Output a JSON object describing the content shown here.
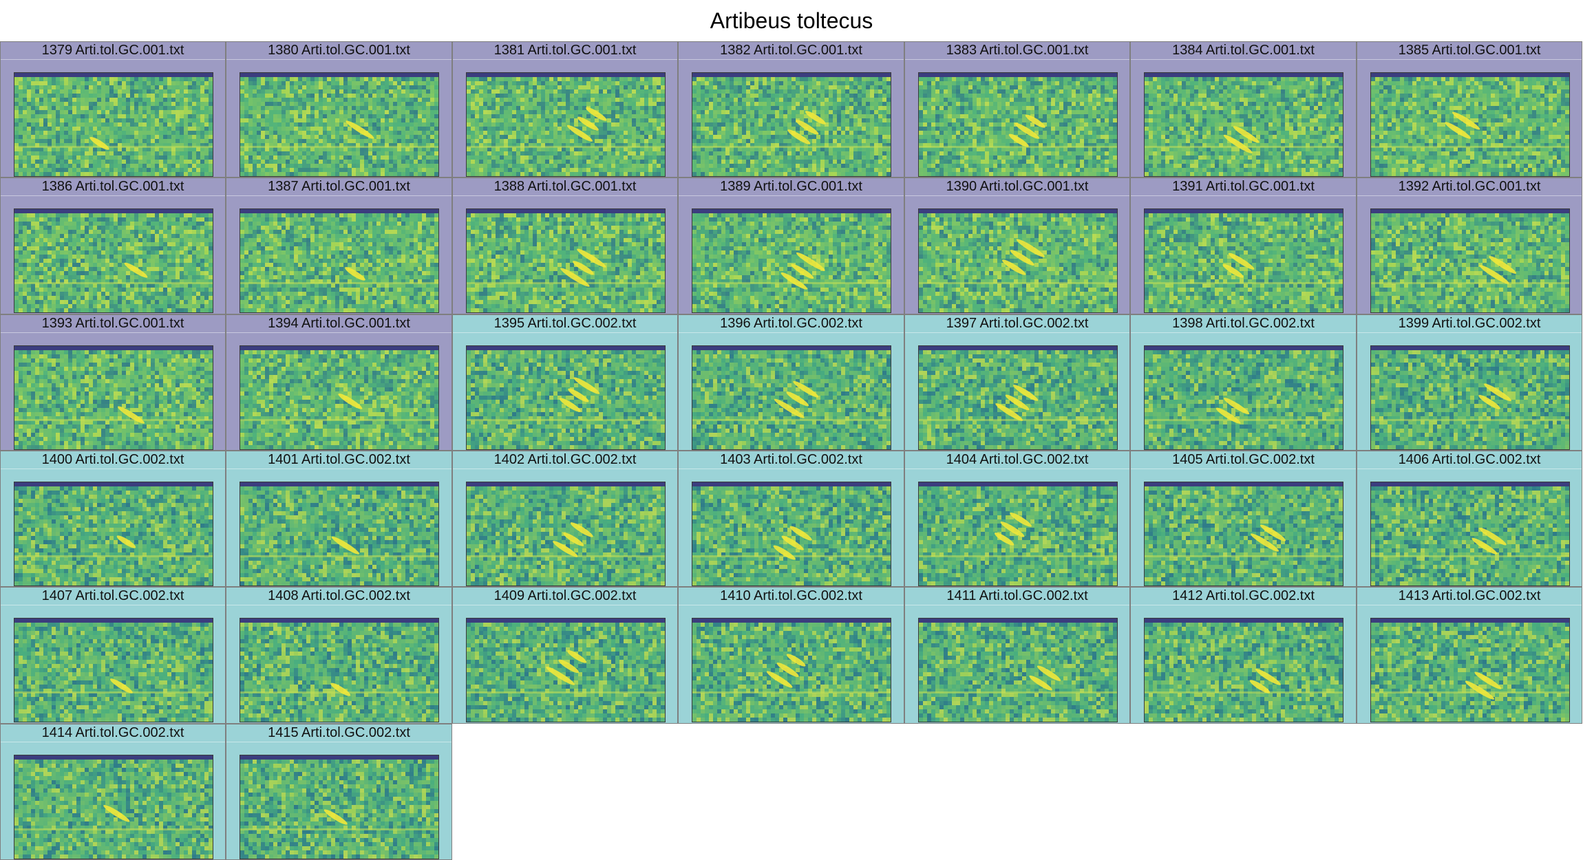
{
  "figure": {
    "title": "Artibeus toltecus"
  },
  "colors": {
    "group_001": "#9d9bc3",
    "group_002": "#9bd3d7",
    "spectro_base": "#4fb27c",
    "spectro_bright": "#b9dd4a",
    "spectro_dark": "#2b6e8a",
    "spectro_top": "#3b3d7e",
    "call": "#f1e83a"
  },
  "panels": [
    {
      "label": "1379 Arti.tol.GC.001.txt",
      "group": "001"
    },
    {
      "label": "1380 Arti.tol.GC.001.txt",
      "group": "001"
    },
    {
      "label": "1381 Arti.tol.GC.001.txt",
      "group": "001"
    },
    {
      "label": "1382 Arti.tol.GC.001.txt",
      "group": "001"
    },
    {
      "label": "1383 Arti.tol.GC.001.txt",
      "group": "001"
    },
    {
      "label": "1384 Arti.tol.GC.001.txt",
      "group": "001"
    },
    {
      "label": "1385 Arti.tol.GC.001.txt",
      "group": "001"
    },
    {
      "label": "1386 Arti.tol.GC.001.txt",
      "group": "001"
    },
    {
      "label": "1387 Arti.tol.GC.001.txt",
      "group": "001"
    },
    {
      "label": "1388 Arti.tol.GC.001.txt",
      "group": "001"
    },
    {
      "label": "1389 Arti.tol.GC.001.txt",
      "group": "001"
    },
    {
      "label": "1390 Arti.tol.GC.001.txt",
      "group": "001"
    },
    {
      "label": "1391 Arti.tol.GC.001.txt",
      "group": "001"
    },
    {
      "label": "1392 Arti.tol.GC.001.txt",
      "group": "001"
    },
    {
      "label": "1393 Arti.tol.GC.001.txt",
      "group": "001"
    },
    {
      "label": "1394 Arti.tol.GC.001.txt",
      "group": "001"
    },
    {
      "label": "1395 Arti.tol.GC.002.txt",
      "group": "002"
    },
    {
      "label": "1396 Arti.tol.GC.002.txt",
      "group": "002"
    },
    {
      "label": "1397 Arti.tol.GC.002.txt",
      "group": "002"
    },
    {
      "label": "1398 Arti.tol.GC.002.txt",
      "group": "002"
    },
    {
      "label": "1399 Arti.tol.GC.002.txt",
      "group": "002"
    },
    {
      "label": "1400 Arti.tol.GC.002.txt",
      "group": "002"
    },
    {
      "label": "1401 Arti.tol.GC.002.txt",
      "group": "002"
    },
    {
      "label": "1402 Arti.tol.GC.002.txt",
      "group": "002"
    },
    {
      "label": "1403 Arti.tol.GC.002.txt",
      "group": "002"
    },
    {
      "label": "1404 Arti.tol.GC.002.txt",
      "group": "002"
    },
    {
      "label": "1405 Arti.tol.GC.002.txt",
      "group": "002"
    },
    {
      "label": "1406 Arti.tol.GC.002.txt",
      "group": "002"
    },
    {
      "label": "1407 Arti.tol.GC.002.txt",
      "group": "002"
    },
    {
      "label": "1408 Arti.tol.GC.002.txt",
      "group": "002"
    },
    {
      "label": "1409 Arti.tol.GC.002.txt",
      "group": "002"
    },
    {
      "label": "1410 Arti.tol.GC.002.txt",
      "group": "002"
    },
    {
      "label": "1411 Arti.tol.GC.002.txt",
      "group": "002"
    },
    {
      "label": "1412 Arti.tol.GC.002.txt",
      "group": "002"
    },
    {
      "label": "1413 Arti.tol.GC.002.txt",
      "group": "002"
    },
    {
      "label": "1414 Arti.tol.GC.002.txt",
      "group": "002"
    },
    {
      "label": "1415 Arti.tol.GC.002.txt",
      "group": "002"
    }
  ]
}
